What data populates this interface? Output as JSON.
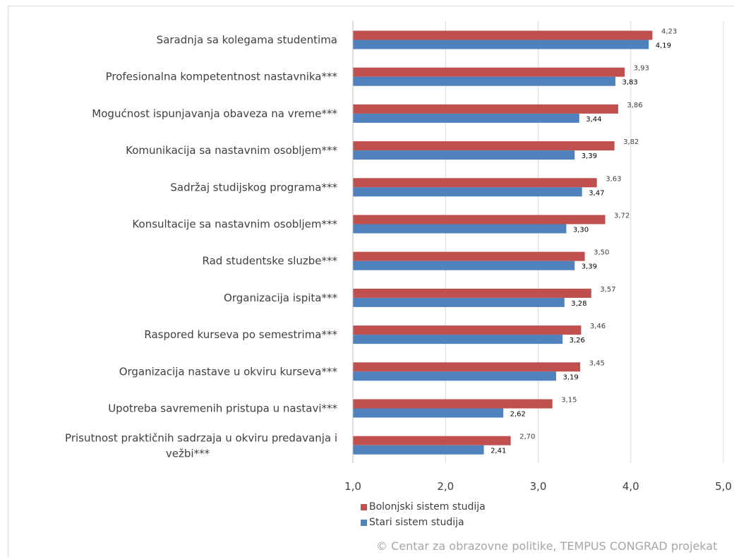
{
  "chart_data": {
    "type": "bar",
    "orientation": "horizontal",
    "categories": [
      "Saradnja sa kolegama studentima",
      "Profesionalna kompetentnost nastavnika***",
      "Mogućnost ispunjavanja obaveza na vreme***",
      "Komunikacija sa nastavnim osobljem***",
      "Sadržaj studijskog programa***",
      "Konsultacije sa nastavnim osobljem***",
      "Rad studentske sluzbe***",
      "Organizacija ispita***",
      "Raspored kurseva po semestrima***",
      "Organizacija nastave u okviru kurseva***",
      "Upotreba savremenih pristupa u nastavi***",
      [
        "Prisutnost praktičnih sadrzaja u okviru predavanja i",
        "vežbi***"
      ]
    ],
    "series": [
      {
        "name": "Bolonjski sistem studija",
        "color": "#c0504d",
        "values": [
          4.23,
          3.93,
          3.86,
          3.82,
          3.63,
          3.72,
          3.5,
          3.57,
          3.46,
          3.45,
          3.15,
          2.7
        ],
        "labels": [
          "4,23",
          "3,93",
          "3,86",
          "3,82",
          "3,63",
          "3,72",
          "3,50",
          "3,57",
          "3,46",
          "3,45",
          "3,15",
          "2,70"
        ]
      },
      {
        "name": "Stari sistem studija",
        "color": "#4f81bd",
        "values": [
          4.19,
          3.83,
          3.44,
          3.39,
          3.47,
          3.3,
          3.39,
          3.28,
          3.26,
          3.19,
          2.62,
          2.41
        ],
        "labels": [
          "4,19",
          "3,83",
          "3,44",
          "3,39",
          "3,47",
          "3,30",
          "3,39",
          "3,28",
          "3,26",
          "3,19",
          "2,62",
          "2,41"
        ]
      }
    ],
    "xlim": [
      1.0,
      5.0
    ],
    "ticks": [
      1.0,
      2.0,
      3.0,
      4.0,
      5.0
    ],
    "tick_labels": [
      "1,0",
      "2,0",
      "3,0",
      "4,0",
      "5,0"
    ],
    "grid": "vertical",
    "legend_position": "bottom",
    "colors": {
      "gridline": "#d9d9d9",
      "text": "#404040"
    }
  },
  "credit": "© Centar za obrazovne politike, TEMPUS CONGRAD projekat"
}
